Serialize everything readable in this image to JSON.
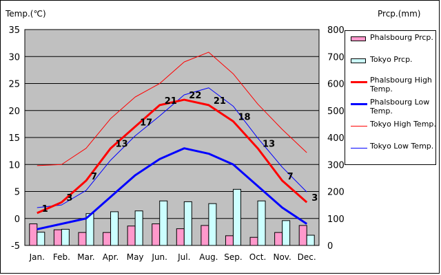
{
  "chart_data": {
    "type": "line",
    "title": "",
    "ylabel_left": "Temp.(℃)",
    "ylabel_right": "Prcp.(mm)",
    "categories": [
      "Jan.",
      "Feb.",
      "Mar.",
      "Apr.",
      "May",
      "Jun.",
      "Jul.",
      "Aug.",
      "Sep.",
      "Oct.",
      "Nov.",
      "Dec."
    ],
    "ylim_left": [
      -5,
      35
    ],
    "yticks_left": [
      -5,
      0,
      5,
      10,
      15,
      20,
      25,
      30,
      35
    ],
    "ylim_right": [
      0,
      800
    ],
    "yticks_right": [
      0,
      100,
      200,
      300,
      400,
      500,
      600,
      700,
      800
    ],
    "grid": true,
    "legend_position": "right",
    "series": [
      {
        "name": "Phalsbourg Prcp.",
        "kind": "bar",
        "axis": "right",
        "color": "#ff99cc",
        "values": [
          80,
          58,
          48,
          48,
          72,
          80,
          62,
          74,
          36,
          30,
          48,
          74
        ]
      },
      {
        "name": "Tokyo Prcp.",
        "kind": "bar",
        "axis": "right",
        "color": "#ccffff",
        "values": [
          49,
          60,
          118,
          125,
          128,
          165,
          162,
          155,
          208,
          165,
          92,
          38
        ]
      },
      {
        "name": "Phalsbourg High Temp.",
        "kind": "line",
        "axis": "left",
        "color": "#ff0000",
        "width": 3,
        "values": [
          1,
          3,
          7,
          13,
          17,
          21,
          22,
          21,
          18,
          13,
          7,
          3
        ],
        "labels": [
          "1",
          "3",
          "7",
          "13",
          "17",
          "21",
          "22",
          "21",
          "18",
          "13",
          "7",
          "3"
        ]
      },
      {
        "name": "Phalsbourg Low Temp.",
        "kind": "line",
        "axis": "left",
        "color": "#0000ff",
        "width": 3,
        "values": [
          -2,
          -1,
          0,
          4,
          8,
          11,
          13,
          12,
          10,
          6,
          2,
          -1
        ]
      },
      {
        "name": "Tokyo High Temp.",
        "kind": "line",
        "axis": "left",
        "color": "#ff0000",
        "width": 1,
        "values": [
          9.8,
          10,
          13,
          18.5,
          22.5,
          25,
          29,
          30.8,
          26.8,
          21.2,
          16.5,
          12.2
        ]
      },
      {
        "name": "Tokyo Low Temp.",
        "kind": "line",
        "axis": "left",
        "color": "#0000ff",
        "width": 1,
        "values": [
          2,
          2.5,
          5.2,
          10.8,
          15.3,
          19,
          22.9,
          24.2,
          20.8,
          14.9,
          9.5,
          4.9
        ]
      }
    ]
  },
  "legend": {
    "items": [
      {
        "label": "Phalsbourg Prcp."
      },
      {
        "label": "Tokyo Prcp."
      },
      {
        "label": "Phalsbourg High Temp."
      },
      {
        "label": "Phalsbourg Low Temp."
      },
      {
        "label": "Tokyo High Temp."
      },
      {
        "label": "Tokyo Low Temp."
      }
    ]
  },
  "colors": {
    "plot_background": "#c0c0c0",
    "grid": "#000000"
  }
}
